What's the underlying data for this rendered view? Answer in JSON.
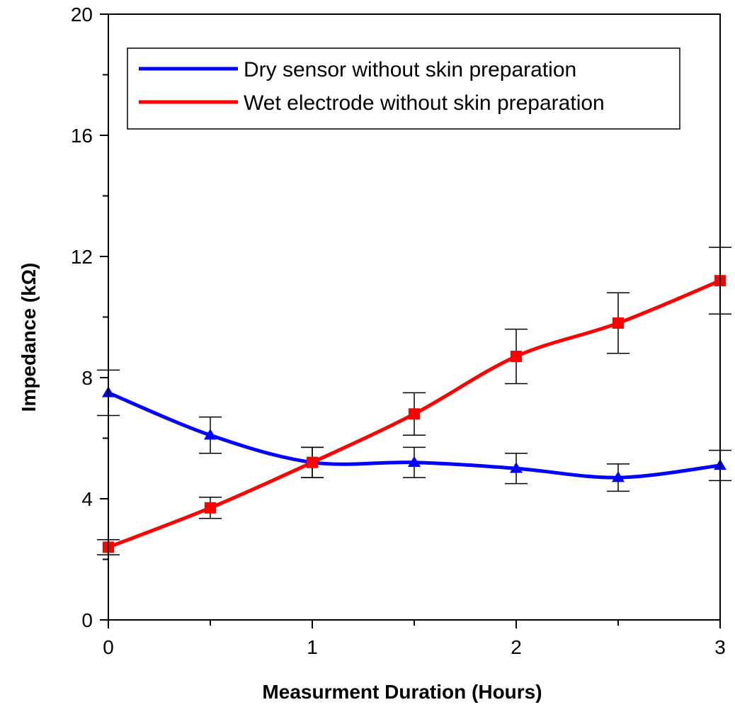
{
  "chart_data": {
    "type": "line",
    "title": "",
    "xlabel": "Measurment Duration (Hours)",
    "ylabel": "Impedance  (kΩ)",
    "xlim": [
      0,
      3
    ],
    "ylim": [
      0,
      20
    ],
    "x_ticks": [
      0,
      1,
      2,
      3
    ],
    "x_tick_labels": [
      "0",
      "1",
      "2",
      "3"
    ],
    "x_minor_ticks": [
      0.5,
      1.5,
      2.5
    ],
    "y_ticks": [
      0,
      4,
      8,
      12,
      16,
      20
    ],
    "y_tick_labels": [
      "0",
      "4",
      "8",
      "12",
      "16",
      "20"
    ],
    "y_minor_ticks": [
      2,
      6,
      10,
      14,
      18
    ],
    "grid": false,
    "legend_position": "top-right",
    "x": [
      0,
      0.5,
      1,
      1.5,
      2,
      2.5,
      3
    ],
    "series": [
      {
        "name": "Dry sensor without skin preparation",
        "color": "#0000ff",
        "marker": "triangle",
        "values": [
          7.5,
          6.1,
          5.2,
          5.2,
          5.0,
          4.7,
          5.1
        ],
        "errors": [
          0.75,
          0.6,
          0.5,
          0.5,
          0.5,
          0.45,
          0.5
        ]
      },
      {
        "name": "Wet electrode without skin preparation",
        "color": "#ff0000",
        "marker": "square",
        "values": [
          2.4,
          3.7,
          5.2,
          6.8,
          8.7,
          9.8,
          11.2
        ],
        "errors": [
          0.25,
          0.35,
          0.5,
          0.7,
          0.9,
          1.0,
          1.1
        ]
      }
    ]
  }
}
